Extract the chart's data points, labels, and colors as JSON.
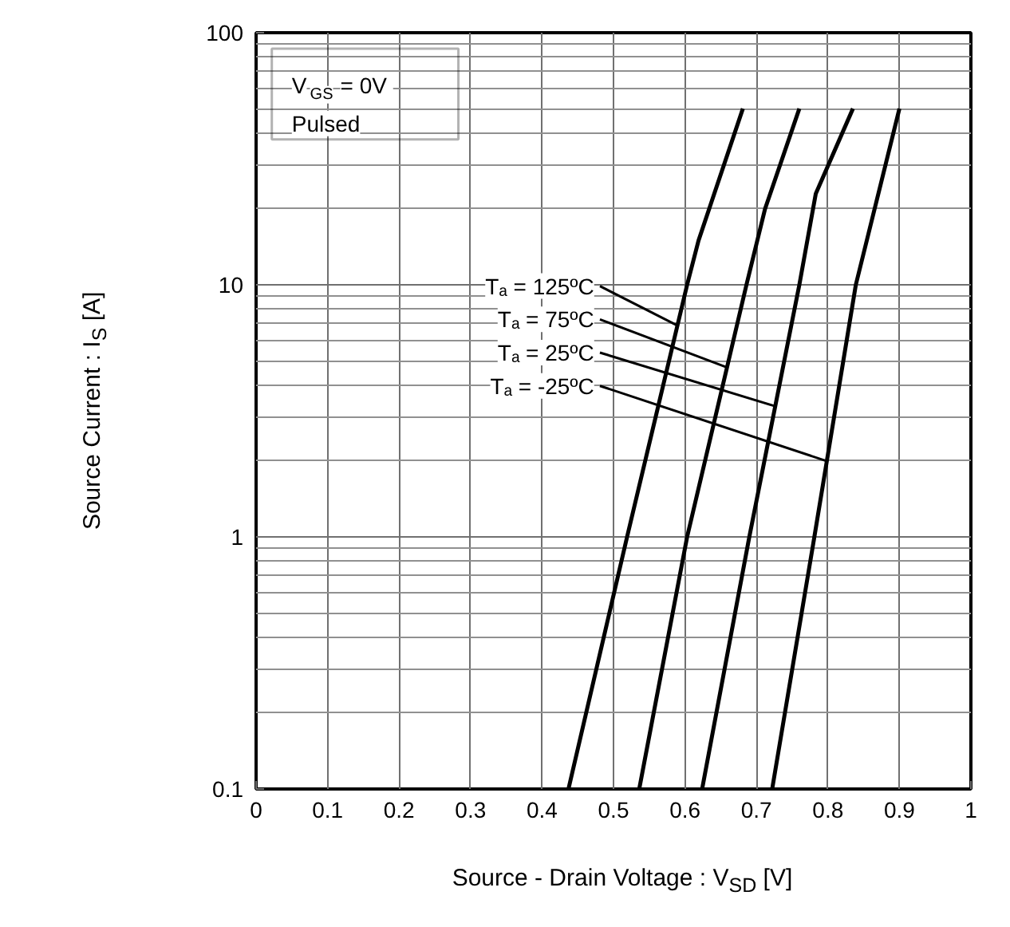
{
  "chart_data": {
    "type": "line",
    "xlabel": "Source - Drain Voltage : V$_{SD}$ [V]",
    "ylabel": "Source Current : I$_{S}$ [A]",
    "log": "y",
    "grid": true,
    "marker": "none",
    "line_style": "solid",
    "xlim": [
      0,
      1
    ],
    "ylim": [
      0.1,
      100
    ],
    "xticks": [
      {
        "value": 0,
        "label": "0"
      },
      0.1,
      0.2,
      0.3,
      0.4,
      0.5,
      0.6,
      0.7,
      0.8,
      0.9,
      {
        "value": 1,
        "label": "1"
      }
    ],
    "yticks": [
      0.1,
      {
        "value": 0.2,
        "label": null
      },
      {
        "value": 0.3,
        "label": null
      },
      {
        "value": 0.4,
        "label": null
      },
      {
        "value": 0.5,
        "label": null
      },
      {
        "value": 0.6,
        "label": null
      },
      {
        "value": 0.7,
        "label": null
      },
      {
        "value": 0.8,
        "label": null
      },
      {
        "value": 0.9,
        "label": null
      },
      1,
      {
        "value": 2,
        "label": null
      },
      {
        "value": 3,
        "label": null
      },
      {
        "value": 4,
        "label": null
      },
      {
        "value": 5,
        "label": null
      },
      {
        "value": 6,
        "label": null
      },
      {
        "value": 7,
        "label": null
      },
      {
        "value": 8,
        "label": null
      },
      {
        "value": 9,
        "label": null
      },
      10,
      {
        "value": 20,
        "label": null
      },
      {
        "value": 30,
        "label": null
      },
      {
        "value": 40,
        "label": null
      },
      {
        "value": 50,
        "label": null
      },
      {
        "value": 60,
        "label": null
      },
      {
        "value": 70,
        "label": null
      },
      {
        "value": 80,
        "label": null
      },
      {
        "value": 90,
        "label": null
      },
      100
    ],
    "series": [
      {
        "color": "#000000",
        "x": [
          0.437,
          0.519,
          0.603,
          0.619,
          0.681
        ],
        "values": [
          0.1,
          1,
          10,
          15,
          50
        ]
      },
      {
        "color": "#000000",
        "x": [
          0.536,
          0.603,
          0.686,
          0.712,
          0.76
        ],
        "values": [
          0.1,
          1,
          10,
          20,
          50
        ]
      },
      {
        "color": "#000000",
        "x": [
          0.624,
          0.69,
          0.76,
          0.783,
          0.835
        ],
        "values": [
          0.1,
          1,
          10,
          23,
          50
        ]
      },
      {
        "color": "#000000",
        "x": [
          0.722,
          0.781,
          0.839,
          0.9
        ],
        "values": [
          0.1,
          1,
          10,
          50
        ]
      }
    ],
    "annotations": [
      "V$_{GS}$ = 0V",
      "Pulsed",
      {
        "text": "Tₐ = 125ºC",
        "x": 0.589,
        "y": 6.9
      },
      {
        "text": "Tₐ = 75ºC",
        "x": 0.659,
        "y": 4.7
      },
      {
        "text": "Tₐ = 25ºC",
        "x": 0.726,
        "y": 3.3
      },
      {
        "text": "Tₐ = -25ºC",
        "x": 0.798,
        "y": 2.0
      }
    ]
  }
}
